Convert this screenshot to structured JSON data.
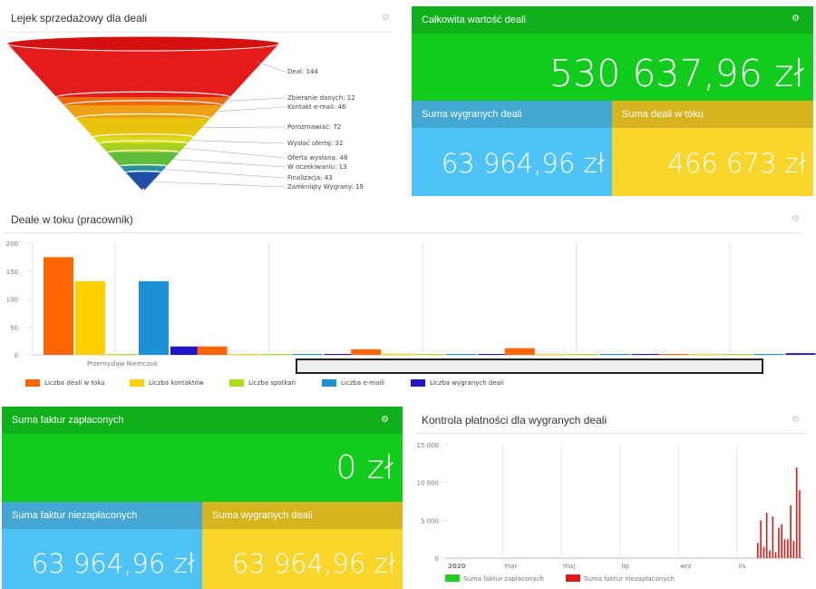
{
  "funnel": {
    "title": "Lejek sprzedażowy dla deali",
    "stages": [
      {
        "label": "Deal: 144",
        "color": "#e31b1b"
      },
      {
        "label": "Zbieranie danych: 12",
        "color": "#ee6a10"
      },
      {
        "label": "Kontakt e-mail: 46",
        "color": "#f0a014"
      },
      {
        "label": "Porozmawiać: 72",
        "color": "#e8c40f"
      },
      {
        "label": "Wysłać ofertę: 32",
        "color": "#d8dc12"
      },
      {
        "label": "Oferta wysłana: 48",
        "color": "#a8d11d"
      },
      {
        "label": "W oczekiwaniu: 13",
        "color": "#5fbb3a"
      },
      {
        "label": "Finalizacja: 43",
        "color": "#2a8fa8"
      },
      {
        "label": "Zamknięty Wygrany: 19",
        "color": "#1f4fa8"
      }
    ]
  },
  "total": {
    "title": "Całkowita wartość deali",
    "value": "530 637,96 zł",
    "won_title": "Suma wygranych deali",
    "won_value": "63 964,96 zł",
    "progress_title": "Suma deali w toku",
    "progress_value": "466 673 zł"
  },
  "colors": {
    "green": "#11cc1c",
    "green_dark": "#0fb019",
    "blue": "#4fc3f5",
    "blue_dark": "#44a6d3",
    "yellow": "#f8d52a",
    "yellow_dark": "#d6b31f"
  },
  "deals_chart": {
    "title": "Deale w toku (pracownik)",
    "employee_label": "Przemysław Niemczuk",
    "chart_data": {
      "type": "bar",
      "categories": [
        "Przemysław Niemczuk",
        "",
        "",
        "",
        ""
      ],
      "ylim": [
        0,
        200
      ],
      "yticks": [
        "0",
        "50",
        "100",
        "150",
        "200"
      ],
      "series": [
        {
          "name": "Liczba deali w toku",
          "color": "#ff6600",
          "values": [
            175,
            15,
            10,
            12,
            0
          ]
        },
        {
          "name": "Liczba kontaktów",
          "color": "#ffd000",
          "values": [
            132,
            1,
            2,
            1,
            0
          ]
        },
        {
          "name": "Liczba spotkań",
          "color": "#a8e010",
          "values": [
            0,
            0,
            0,
            0,
            0
          ]
        },
        {
          "name": "Liczba e-maili",
          "color": "#1e90d6",
          "values": [
            132,
            0,
            0,
            0,
            1
          ]
        },
        {
          "name": "Liczba wygranych deali",
          "color": "#2214c8",
          "values": [
            15,
            0,
            0,
            0,
            3
          ]
        }
      ]
    }
  },
  "invoices": {
    "title": "Suma faktur zapłaconych",
    "value": "0 zł",
    "unpaid_title": "Suma faktur niezapłaconych",
    "unpaid_value": "63 964,96 zł",
    "won_title": "Suma wygranych deali",
    "won_value": "63 964,96 zł"
  },
  "payments_chart": {
    "title": "Kontrola płatności dla wygranych deali",
    "chart_data": {
      "type": "bar",
      "ylim": [
        0,
        15000
      ],
      "yticks": [
        "0",
        "5 000",
        "10 000",
        "15 000"
      ],
      "xticks": [
        "2020",
        "mar",
        "maj",
        "lip",
        "wrz",
        "lis"
      ],
      "series": [
        {
          "name": "Suma faktur zapłaconych",
          "color": "#22cc22",
          "values": []
        },
        {
          "name": "Suma faktur niezapłaconych",
          "color": "#e01818",
          "values": [
            2000,
            5000,
            1500,
            6000,
            1000,
            5500,
            800,
            4000,
            4500,
            2500,
            2500,
            7000,
            2300,
            12000,
            9000
          ]
        }
      ]
    }
  }
}
